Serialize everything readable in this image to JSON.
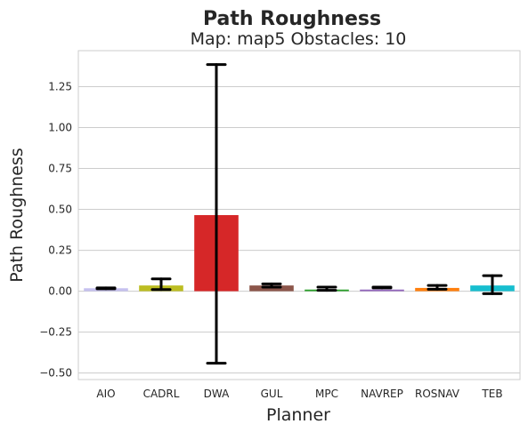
{
  "chart_data": {
    "type": "bar",
    "suptitle": "Path Roughness",
    "title": "Map: map5 Obstacles: 10",
    "xlabel": "Planner",
    "ylabel": "Path Roughness",
    "ylim": [
      -0.54,
      1.47
    ],
    "yticks": [
      {
        "value": -0.5,
        "label": "−0.50"
      },
      {
        "value": -0.25,
        "label": "−0.25"
      },
      {
        "value": 0.0,
        "label": "0.00"
      },
      {
        "value": 0.25,
        "label": "0.25"
      },
      {
        "value": 0.5,
        "label": "0.50"
      },
      {
        "value": 0.75,
        "label": "0.75"
      },
      {
        "value": 1.0,
        "label": "1.00"
      },
      {
        "value": 1.25,
        "label": "1.25"
      }
    ],
    "grid": true,
    "categories": [
      "AIO",
      "CADRL",
      "DWA",
      "GUL",
      "MPC",
      "NAVREP",
      "ROSNAV",
      "TEB"
    ],
    "values": [
      0.018,
      0.035,
      0.465,
      0.035,
      0.01,
      0.01,
      0.02,
      0.035
    ],
    "error_low": [
      0.015,
      0.01,
      -0.44,
      0.025,
      0.005,
      0.02,
      0.012,
      -0.015
    ],
    "error_high": [
      0.02,
      0.075,
      1.385,
      0.045,
      0.025,
      0.025,
      0.035,
      0.095
    ],
    "colors": [
      "#c6c1ef",
      "#bcbd22",
      "#d62728",
      "#8c564b",
      "#2ca02c",
      "#9467bd",
      "#ff7f0e",
      "#17becf"
    ]
  }
}
